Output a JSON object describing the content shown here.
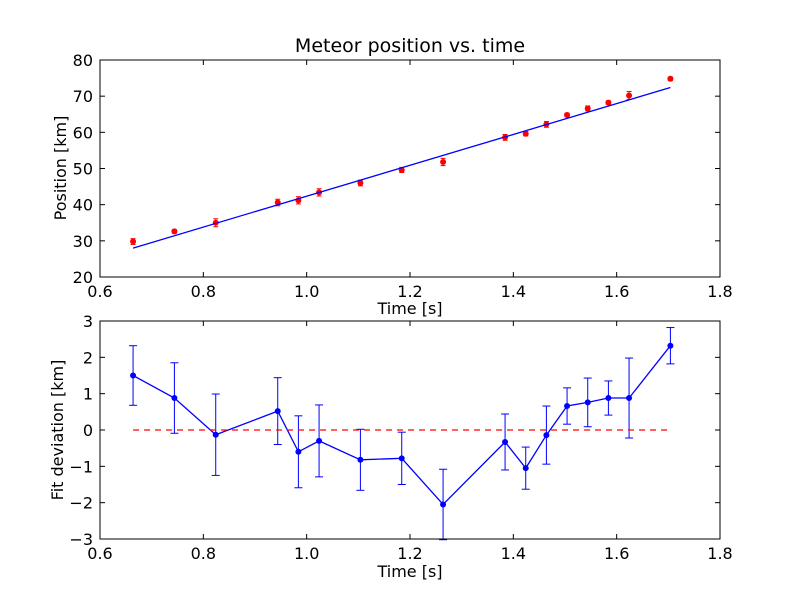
{
  "chart_data": [
    {
      "type": "scatter",
      "title": "Meteor position vs. time",
      "xlabel": "Time [s]",
      "ylabel": "Position [km]",
      "xlim": [
        0.6,
        1.8
      ],
      "ylim": [
        20,
        80
      ],
      "xticks": [
        "0.6",
        "0.8",
        "1.0",
        "1.2",
        "1.4",
        "1.6",
        "1.8"
      ],
      "yticks": [
        "20",
        "30",
        "40",
        "50",
        "60",
        "70",
        "80"
      ],
      "grid": false,
      "series": [
        {
          "kind": "errorbar-points",
          "color": "#ff0000",
          "x": [
            0.664,
            0.744,
            0.824,
            0.944,
            0.984,
            1.024,
            1.104,
            1.184,
            1.264,
            1.384,
            1.424,
            1.464,
            1.504,
            1.544,
            1.584,
            1.624,
            1.704
          ],
          "y": [
            29.8,
            32.6,
            35.0,
            40.6,
            41.2,
            43.4,
            46.0,
            49.6,
            51.8,
            58.6,
            59.6,
            62.2,
            64.8,
            66.6,
            68.2,
            70.2,
            74.8
          ],
          "yerr": [
            0.8,
            0.5,
            1.1,
            0.9,
            1.0,
            1.0,
            0.8,
            0.7,
            1.0,
            0.8,
            0.6,
            0.8,
            0.5,
            0.7,
            0.5,
            1.1,
            0.5
          ]
        },
        {
          "kind": "fit-line",
          "color": "#0000ff",
          "x": [
            0.664,
            1.704
          ],
          "y": [
            28.0,
            72.4
          ]
        }
      ]
    },
    {
      "type": "line",
      "title": "",
      "xlabel": "Time [s]",
      "ylabel": "Fit deviation [km]",
      "xlim": [
        0.6,
        1.8
      ],
      "ylim": [
        -3,
        3
      ],
      "xticks": [
        "0.6",
        "0.8",
        "1.0",
        "1.2",
        "1.4",
        "1.6",
        "1.8"
      ],
      "yticks": [
        "−3",
        "−2",
        "−1",
        "0",
        "1",
        "2",
        "3"
      ],
      "grid": false,
      "series": [
        {
          "kind": "errorbar-line",
          "color": "#0000ff",
          "x": [
            0.664,
            0.744,
            0.824,
            0.944,
            0.984,
            1.024,
            1.104,
            1.184,
            1.264,
            1.384,
            1.424,
            1.464,
            1.504,
            1.544,
            1.584,
            1.624,
            1.704
          ],
          "y": [
            1.5,
            0.88,
            -0.13,
            0.52,
            -0.6,
            -0.3,
            -0.82,
            -0.78,
            -2.05,
            -0.33,
            -1.05,
            -0.14,
            0.66,
            0.76,
            0.88,
            0.88,
            2.32
          ],
          "yerr": [
            0.82,
            0.97,
            1.12,
            0.92,
            0.99,
            0.99,
            0.84,
            0.72,
            0.97,
            0.77,
            0.58,
            0.8,
            0.5,
            0.67,
            0.47,
            1.1,
            0.5
          ]
        },
        {
          "kind": "reference-line",
          "color": "#ff0000",
          "dashed": true,
          "x": [
            0.664,
            1.704
          ],
          "y": [
            0,
            0
          ]
        }
      ]
    }
  ]
}
